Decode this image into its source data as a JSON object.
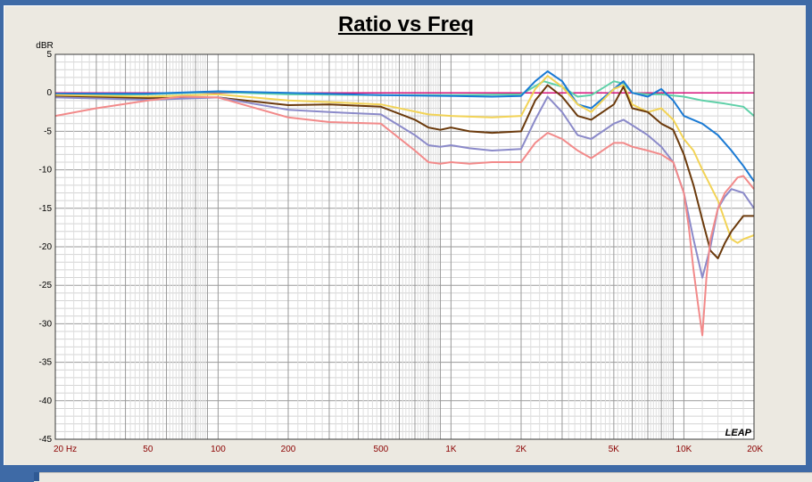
{
  "chart_data": {
    "type": "line",
    "title": "Ratio vs Freq",
    "ylabel": "dBR",
    "ylim": [
      -45,
      5
    ],
    "xlim": [
      20,
      20000
    ],
    "xscale": "log",
    "grid": true,
    "y_ticks": [
      5,
      0,
      -5,
      -10,
      -15,
      -20,
      -25,
      -30,
      -35,
      -40,
      -45
    ],
    "y_tick_labels": [
      "5",
      "0",
      "-5",
      "-10",
      "-15",
      "-20",
      "-25",
      "-30",
      "-35",
      "-40",
      "-45"
    ],
    "x_ticks": [
      20,
      50,
      100,
      200,
      500,
      1000,
      2000,
      5000,
      10000,
      20000
    ],
    "x_tick_labels": [
      "20  Hz",
      "50",
      "100",
      "200",
      "500",
      "1K",
      "2K",
      "5K",
      "10K",
      "20K"
    ],
    "watermark": "LEAP",
    "series": [
      {
        "color": "#d6127a",
        "x": [
          20,
          20000
        ],
        "y": [
          0,
          0
        ]
      },
      {
        "color": "#5fd0a8",
        "x": [
          20,
          50,
          100,
          200,
          500,
          1000,
          2000,
          2500,
          3000,
          3500,
          4000,
          5000,
          5500,
          6000,
          7000,
          8000,
          10000,
          12000,
          15000,
          18000,
          20000
        ],
        "y": [
          -0.3,
          -0.2,
          0.1,
          -0.2,
          -0.3,
          -0.3,
          -0.2,
          1.5,
          0.8,
          -0.5,
          -0.3,
          1.5,
          1.2,
          0,
          -0.2,
          -0.2,
          -0.5,
          -1.0,
          -1.4,
          -1.8,
          -3.0
        ]
      },
      {
        "color": "#1a7ad4",
        "x": [
          20,
          50,
          100,
          200,
          500,
          1000,
          1500,
          2000,
          2300,
          2600,
          3000,
          3500,
          4000,
          5000,
          5500,
          6000,
          7000,
          8000,
          9000,
          10000,
          12000,
          14000,
          16000,
          18000,
          20000
        ],
        "y": [
          -0.1,
          -0.1,
          0.2,
          0,
          -0.3,
          -0.4,
          -0.5,
          -0.4,
          1.5,
          2.8,
          1.5,
          -1.5,
          -2.0,
          0.5,
          1.5,
          0,
          -0.5,
          0.5,
          -1.0,
          -3.0,
          -4.0,
          -5.5,
          -7.5,
          -9.5,
          -11.5
        ]
      },
      {
        "color": "#f2d356",
        "x": [
          20,
          50,
          100,
          200,
          300,
          500,
          800,
          1000,
          1500,
          2000,
          2300,
          2600,
          3000,
          3500,
          4000,
          5000,
          5500,
          6000,
          7000,
          8000,
          9000,
          10000,
          11000,
          12000,
          14000,
          16000,
          17000,
          18000,
          20000
        ],
        "y": [
          -0.3,
          -0.5,
          -0.2,
          -1.0,
          -1.2,
          -1.5,
          -2.8,
          -3.0,
          -3.2,
          -3.0,
          0.5,
          2.2,
          0.8,
          -1.5,
          -2.5,
          0.5,
          1.0,
          -1.5,
          -2.5,
          -2.0,
          -3.5,
          -6.0,
          -7.5,
          -10.0,
          -14.0,
          -19.0,
          -19.5,
          -19.0,
          -18.5
        ]
      },
      {
        "color": "#6b3a0c",
        "x": [
          20,
          50,
          100,
          200,
          300,
          500,
          700,
          800,
          900,
          1000,
          1200,
          1500,
          2000,
          2300,
          2600,
          3000,
          3500,
          4000,
          5000,
          5500,
          6000,
          7000,
          8000,
          9000,
          10000,
          11000,
          12000,
          13000,
          14000,
          15000,
          16000,
          18000,
          20000
        ],
        "y": [
          -0.5,
          -0.7,
          -0.6,
          -1.6,
          -1.5,
          -1.8,
          -3.5,
          -4.5,
          -4.8,
          -4.5,
          -5.0,
          -5.2,
          -5.0,
          -1.0,
          1.0,
          -0.5,
          -3.0,
          -3.5,
          -1.5,
          0.8,
          -2.0,
          -2.5,
          -4.0,
          -4.8,
          -8.0,
          -12.0,
          -16.5,
          -20.5,
          -21.5,
          -19.5,
          -18.0,
          -16.0,
          -16.0
        ]
      },
      {
        "color": "#8b8ac9",
        "x": [
          20,
          50,
          100,
          200,
          300,
          500,
          700,
          800,
          900,
          1000,
          1200,
          1500,
          2000,
          2300,
          2600,
          3000,
          3500,
          4000,
          5000,
          5500,
          6000,
          7000,
          8000,
          9000,
          10000,
          11000,
          12000,
          13000,
          14000,
          15000,
          16000,
          18000,
          20000
        ],
        "y": [
          -0.6,
          -0.9,
          -0.6,
          -2.2,
          -2.5,
          -2.8,
          -5.5,
          -6.8,
          -7.0,
          -6.8,
          -7.2,
          -7.5,
          -7.3,
          -3.5,
          -0.5,
          -2.5,
          -5.5,
          -6.0,
          -4.0,
          -3.5,
          -4.2,
          -5.5,
          -7.0,
          -9.0,
          -13.0,
          -19.0,
          -24.0,
          -20.0,
          -15.0,
          -13.5,
          -12.5,
          -13.0,
          -15.0
        ]
      },
      {
        "color": "#f28a8a",
        "x": [
          20,
          30,
          50,
          70,
          100,
          200,
          300,
          500,
          700,
          800,
          900,
          1000,
          1200,
          1500,
          2000,
          2300,
          2600,
          3000,
          3500,
          4000,
          5000,
          5500,
          6000,
          7000,
          8000,
          9000,
          10000,
          10500,
          11000,
          11500,
          12000,
          12500,
          13000,
          14000,
          15000,
          16000,
          17000,
          18000,
          20000
        ],
        "y": [
          -3.0,
          -2.0,
          -1.0,
          -0.5,
          -0.6,
          -3.2,
          -3.8,
          -4.0,
          -7.5,
          -9.0,
          -9.2,
          -9.0,
          -9.2,
          -9.0,
          -9.0,
          -6.5,
          -5.2,
          -6.0,
          -7.5,
          -8.5,
          -6.5,
          -6.5,
          -7.0,
          -7.5,
          -8.0,
          -9.0,
          -13.0,
          -17.5,
          -23.0,
          -27.5,
          -31.5,
          -24.0,
          -19.0,
          -15.0,
          -13.0,
          -12.0,
          -11.0,
          -10.8,
          -12.5
        ]
      }
    ]
  }
}
